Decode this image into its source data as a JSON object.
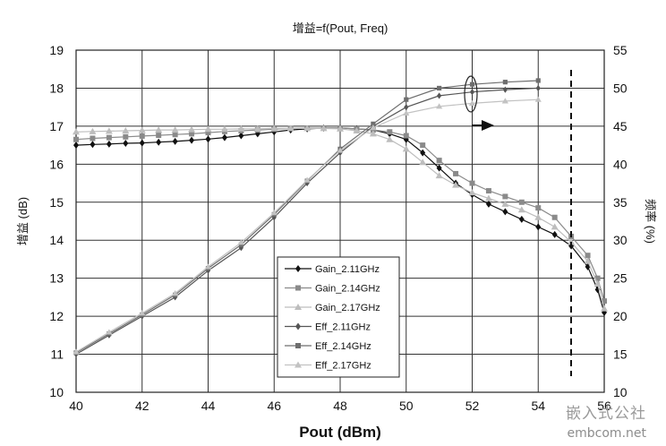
{
  "chart_data": {
    "type": "line",
    "title": "增益=f(Pout, Freq)",
    "xlabel": "Pout (dBm)",
    "ylabel": "增益 (dB)",
    "y2label": "频率 (%)",
    "xlim": [
      40,
      56
    ],
    "ylim": [
      10,
      19
    ],
    "y2lim": [
      10,
      55
    ],
    "xticks": [
      "40",
      "42",
      "44",
      "46",
      "48",
      "50",
      "52",
      "54",
      "56"
    ],
    "yticks": [
      "10",
      "11",
      "12",
      "13",
      "14",
      "15",
      "16",
      "17",
      "18",
      "19"
    ],
    "y2ticks": [
      "10",
      "15",
      "20",
      "25",
      "30",
      "35",
      "40",
      "45",
      "50",
      "55"
    ],
    "grid": true,
    "legend_position": "lower-center",
    "marker_line_x": 55,
    "series": [
      {
        "name": "Gain_2.11GHz",
        "axis": "left",
        "color": "#111111",
        "marker": "diamond",
        "x": [
          40,
          40.5,
          41,
          41.5,
          42,
          42.5,
          43,
          43.5,
          44,
          44.5,
          45,
          45.5,
          46,
          46.5,
          47,
          47.5,
          48,
          48.5,
          49,
          49.5,
          50,
          50.5,
          51,
          51.5,
          52,
          52.5,
          53,
          53.5,
          54,
          54.5,
          55,
          55.5,
          55.8,
          56
        ],
        "y": [
          16.5,
          16.52,
          16.53,
          16.55,
          16.56,
          16.58,
          16.6,
          16.63,
          16.66,
          16.7,
          16.75,
          16.8,
          16.85,
          16.9,
          16.93,
          16.95,
          16.95,
          16.93,
          16.9,
          16.8,
          16.65,
          16.3,
          15.9,
          15.5,
          15.2,
          14.95,
          14.75,
          14.55,
          14.35,
          14.15,
          13.85,
          13.3,
          12.7,
          12.1
        ]
      },
      {
        "name": "Gain_2.14GHz",
        "axis": "left",
        "color": "#8a8a8a",
        "marker": "square",
        "x": [
          40,
          40.5,
          41,
          41.5,
          42,
          42.5,
          43,
          43.5,
          44,
          44.5,
          45,
          45.5,
          46,
          46.5,
          47,
          47.5,
          48,
          48.5,
          49,
          49.5,
          50,
          50.5,
          51,
          51.5,
          52,
          52.5,
          53,
          53.5,
          54,
          54.5,
          55,
          55.5,
          55.8,
          56
        ],
        "y": [
          16.65,
          16.68,
          16.7,
          16.72,
          16.74,
          16.76,
          16.78,
          16.8,
          16.83,
          16.86,
          16.88,
          16.9,
          16.92,
          16.94,
          16.95,
          16.95,
          16.95,
          16.93,
          16.9,
          16.85,
          16.75,
          16.5,
          16.1,
          15.75,
          15.5,
          15.3,
          15.15,
          15.0,
          14.85,
          14.6,
          14.1,
          13.6,
          13.0,
          12.4
        ]
      },
      {
        "name": "Gain_2.17GHz",
        "axis": "left",
        "color": "#bdbdbd",
        "marker": "triangle",
        "x": [
          40,
          40.5,
          41,
          41.5,
          42,
          42.5,
          43,
          43.5,
          44,
          44.5,
          45,
          45.5,
          46,
          46.5,
          47,
          47.5,
          48,
          48.5,
          49,
          49.5,
          50,
          50.5,
          51,
          51.5,
          52,
          52.5,
          53,
          53.5,
          54,
          54.5,
          55,
          55.5,
          55.8,
          56
        ],
        "y": [
          16.85,
          16.86,
          16.87,
          16.88,
          16.89,
          16.9,
          16.9,
          16.91,
          16.92,
          16.92,
          16.93,
          16.93,
          16.94,
          16.94,
          16.94,
          16.94,
          16.93,
          16.88,
          16.8,
          16.65,
          16.4,
          16.05,
          15.7,
          15.45,
          15.25,
          15.1,
          14.95,
          14.8,
          14.6,
          14.35,
          13.95,
          13.45,
          12.85,
          12.2
        ]
      },
      {
        "name": "Eff_2.11GHz",
        "axis": "right",
        "color": "#555555",
        "marker": "diamond",
        "x": [
          40,
          41,
          42,
          43,
          44,
          45,
          46,
          47,
          48,
          49,
          50,
          51,
          52,
          53,
          54
        ],
        "y": [
          15,
          17.5,
          20,
          22.5,
          26,
          29,
          33,
          37.5,
          41.5,
          45,
          47.5,
          49,
          49.5,
          49.8,
          50
        ]
      },
      {
        "name": "Eff_2.14GHz",
        "axis": "right",
        "color": "#6e6e6e",
        "marker": "square",
        "x": [
          40,
          41,
          42,
          43,
          44,
          45,
          46,
          47,
          48,
          49,
          50,
          51,
          52,
          53,
          54
        ],
        "y": [
          15.2,
          17.7,
          20.2,
          22.8,
          26.3,
          29.4,
          33.4,
          37.8,
          42,
          45.3,
          48.5,
          50,
          50.5,
          50.8,
          51
        ]
      },
      {
        "name": "Eff_2.17GHz",
        "axis": "right",
        "color": "#c2c2c2",
        "marker": "triangle",
        "x": [
          40,
          41,
          42,
          43,
          44,
          45,
          46,
          47,
          48,
          49,
          50,
          51,
          52,
          53,
          54
        ],
        "y": [
          15.3,
          17.9,
          20.4,
          23,
          26.5,
          29.7,
          33.6,
          37.9,
          41.8,
          44.8,
          46.7,
          47.6,
          48,
          48.3,
          48.5
        ]
      }
    ]
  },
  "watermark": {
    "line1": "嵌入式公社",
    "line2": "embcom.net"
  }
}
